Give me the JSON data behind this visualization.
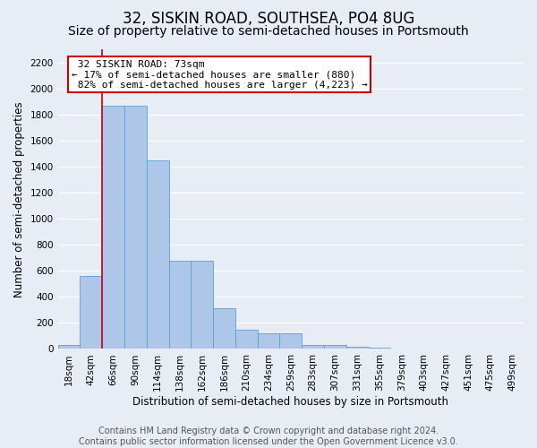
{
  "title": "32, SISKIN ROAD, SOUTHSEA, PO4 8UG",
  "subtitle": "Size of property relative to semi-detached houses in Portsmouth",
  "xlabel": "Distribution of semi-detached houses by size in Portsmouth",
  "ylabel": "Number of semi-detached properties",
  "footer_line1": "Contains HM Land Registry data © Crown copyright and database right 2024.",
  "footer_line2": "Contains public sector information licensed under the Open Government Licence v3.0.",
  "bar_labels": [
    "18sqm",
    "42sqm",
    "66sqm",
    "90sqm",
    "114sqm",
    "138sqm",
    "162sqm",
    "186sqm",
    "210sqm",
    "234sqm",
    "259sqm",
    "283sqm",
    "307sqm",
    "331sqm",
    "355sqm",
    "379sqm",
    "403sqm",
    "427sqm",
    "451sqm",
    "475sqm",
    "499sqm"
  ],
  "bar_values": [
    30,
    560,
    1870,
    1870,
    1450,
    680,
    680,
    310,
    150,
    120,
    120,
    30,
    30,
    20,
    10,
    5,
    5,
    0,
    0,
    0,
    0
  ],
  "bar_color": "#aec6e8",
  "bar_edge_color": "#5a9fd4",
  "background_color": "#e8ecf5",
  "plot_bg_color": "#dde3f0",
  "grid_color": "#ffffff",
  "property_size_label": "32 SISKIN ROAD: 73sqm",
  "pct_smaller": 17,
  "pct_larger": 82,
  "n_smaller": 880,
  "n_larger": 4223,
  "annotation_box_color": "#ffffff",
  "annotation_box_edge": "#cc0000",
  "vline_color": "#cc0000",
  "vline_x": 1.5,
  "ylim": [
    0,
    2300
  ],
  "yticks": [
    0,
    200,
    400,
    600,
    800,
    1000,
    1200,
    1400,
    1600,
    1800,
    2000,
    2200
  ],
  "title_fontsize": 12,
  "subtitle_fontsize": 10,
  "axis_label_fontsize": 8.5,
  "tick_fontsize": 7.5,
  "annotation_fontsize": 8,
  "footer_fontsize": 7
}
